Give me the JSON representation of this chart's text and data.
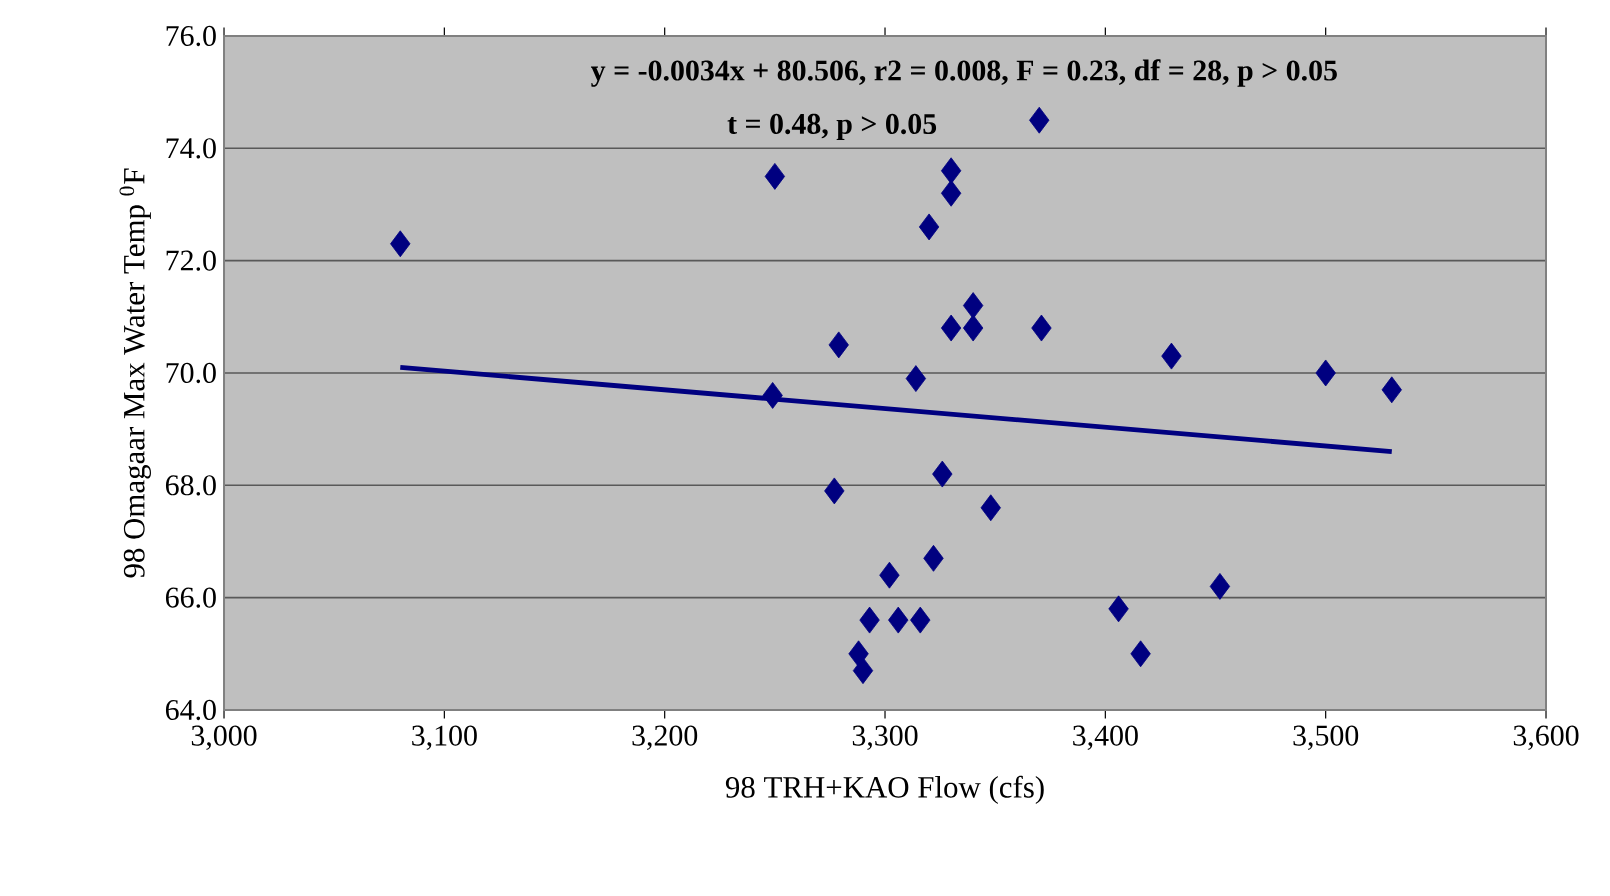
{
  "chart_data": {
    "type": "scatter",
    "xlabel": "98 TRH+KAO Flow (cfs)",
    "ylabel": "98 Omagaar Max Water Temp $^{0}$F",
    "annotations": [
      "y = -0.0034x + 80.506, r2 = 0.008, F = 0.23, df = 28, p > 0.05",
      "t = 0.48, p > 0.05"
    ],
    "xlim": [
      3000,
      3600
    ],
    "ylim": [
      64,
      76
    ],
    "xticks": [
      {
        "value": 3000,
        "label": "3,000"
      },
      {
        "value": 3100,
        "label": "3,100"
      },
      {
        "value": 3200,
        "label": "3,200"
      },
      {
        "value": 3300,
        "label": "3,300"
      },
      {
        "value": 3400,
        "label": "3,400"
      },
      {
        "value": 3500,
        "label": "3,500"
      },
      {
        "value": 3600,
        "label": "3,600"
      }
    ],
    "yticks": [
      {
        "value": 64,
        "label": "64.0"
      },
      {
        "value": 66,
        "label": "66.0"
      },
      {
        "value": 68,
        "label": "68.0"
      },
      {
        "value": 70,
        "label": "70.0"
      },
      {
        "value": 72,
        "label": "72.0"
      },
      {
        "value": 74,
        "label": "74.0"
      },
      {
        "value": 76,
        "label": "76.0"
      }
    ],
    "grid": "y",
    "marker": "diamond",
    "series": [
      {
        "color": "#000080",
        "x": [
          3080,
          3370,
          3250,
          3330,
          3330,
          3320,
          3279,
          3340,
          3330,
          3340,
          3371,
          3314,
          3249,
          3277,
          3326,
          3348,
          3322,
          3302,
          3293,
          3306,
          3316,
          3288,
          3290,
          3406,
          3416,
          3430,
          3500,
          3530,
          3452
        ],
        "values": [
          72.3,
          74.5,
          73.5,
          73.6,
          73.2,
          72.6,
          70.5,
          71.2,
          70.8,
          70.8,
          70.8,
          69.9,
          69.6,
          67.9,
          68.2,
          67.6,
          66.7,
          66.4,
          65.6,
          65.6,
          65.6,
          65.0,
          64.7,
          65.8,
          65.0,
          70.3,
          70.0,
          69.7,
          66.2
        ]
      },
      {
        "type": "line",
        "color": "#000080",
        "marker": "none",
        "x": [
          3080,
          3530
        ],
        "values": [
          70.1,
          68.6
        ]
      }
    ]
  }
}
